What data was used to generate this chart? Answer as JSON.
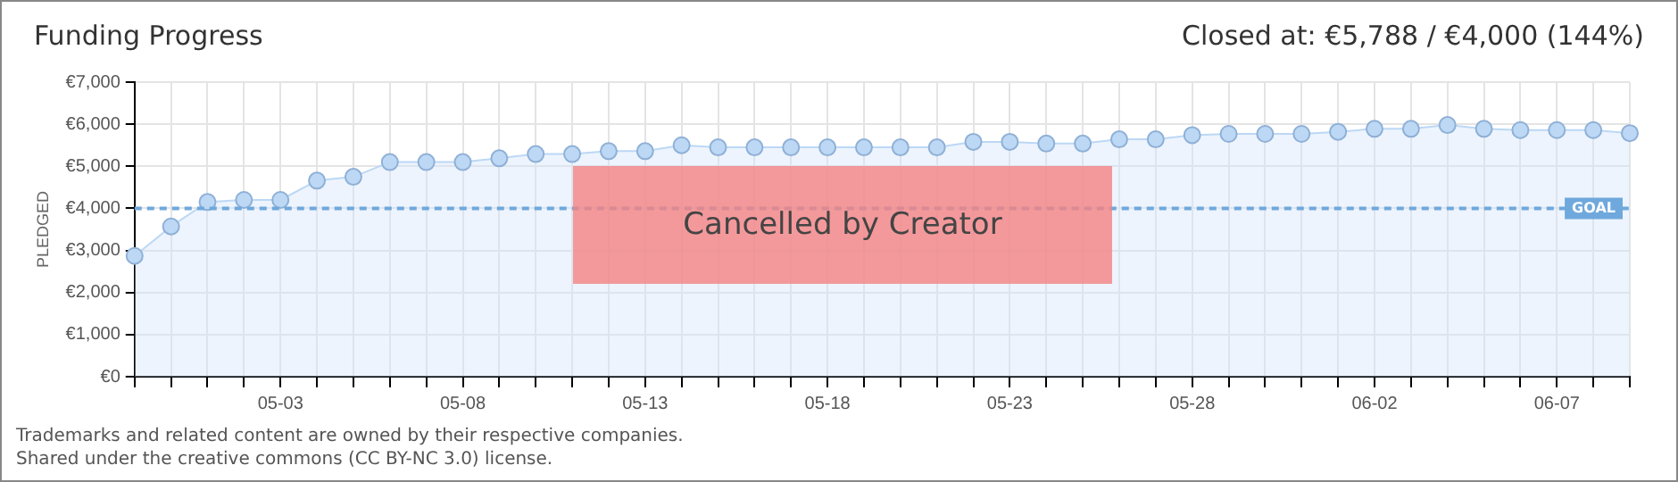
{
  "chart_data": {
    "type": "area",
    "title": "Funding Progress",
    "subtitle": "Closed at: €5,788 / €4,000 (144%)",
    "ylabel": "PLEDGED",
    "categories": [
      null,
      null,
      null,
      null,
      "05-03",
      null,
      null,
      null,
      null,
      "05-08",
      null,
      null,
      null,
      null,
      "05-13",
      null,
      null,
      null,
      null,
      "05-18",
      null,
      null,
      null,
      null,
      "05-23",
      null,
      null,
      null,
      null,
      "05-28",
      null,
      null,
      null,
      null,
      "06-02",
      null,
      null,
      null,
      null,
      "06-07",
      null,
      null
    ],
    "series": [
      {
        "color": "#bcd8f5",
        "values": [
          2870,
          3570,
          4150,
          4200,
          4200,
          4660,
          4750,
          5100,
          5100,
          5100,
          5190,
          5290,
          5290,
          5360,
          5360,
          5500,
          5450,
          5450,
          5450,
          5450,
          5450,
          5450,
          5450,
          5580,
          5580,
          5540,
          5540,
          5640,
          5640,
          5740,
          5770,
          5770,
          5770,
          5820,
          5890,
          5890,
          5980,
          5890,
          5860,
          5860,
          5860,
          5788
        ]
      }
    ],
    "ylim": [
      0,
      7000
    ],
    "yticks": [
      {
        "value": 0,
        "label": "€0"
      },
      {
        "value": 1000,
        "label": "€1,000"
      },
      {
        "value": 2000,
        "label": "€2,000"
      },
      {
        "value": 3000,
        "label": "€3,000"
      },
      {
        "value": 4000,
        "label": "€4,000"
      },
      {
        "value": 5000,
        "label": "€5,000"
      },
      {
        "value": 6000,
        "label": "€6,000"
      },
      {
        "value": 7000,
        "label": "€7,000"
      }
    ],
    "ref_lines": [
      {
        "axis": "y",
        "value": 4000,
        "label": "GOAL",
        "color": "#6fa8dc",
        "line_style": "dashed"
      }
    ],
    "annotations": [
      "Cancelled by Creator",
      "Trademarks and related content are owned by their respective companies.",
      "Shared under the creative commons (CC BY-NC 3.0) license."
    ],
    "grid": true,
    "legend": false,
    "marker": "circle",
    "line_style": "solid"
  }
}
